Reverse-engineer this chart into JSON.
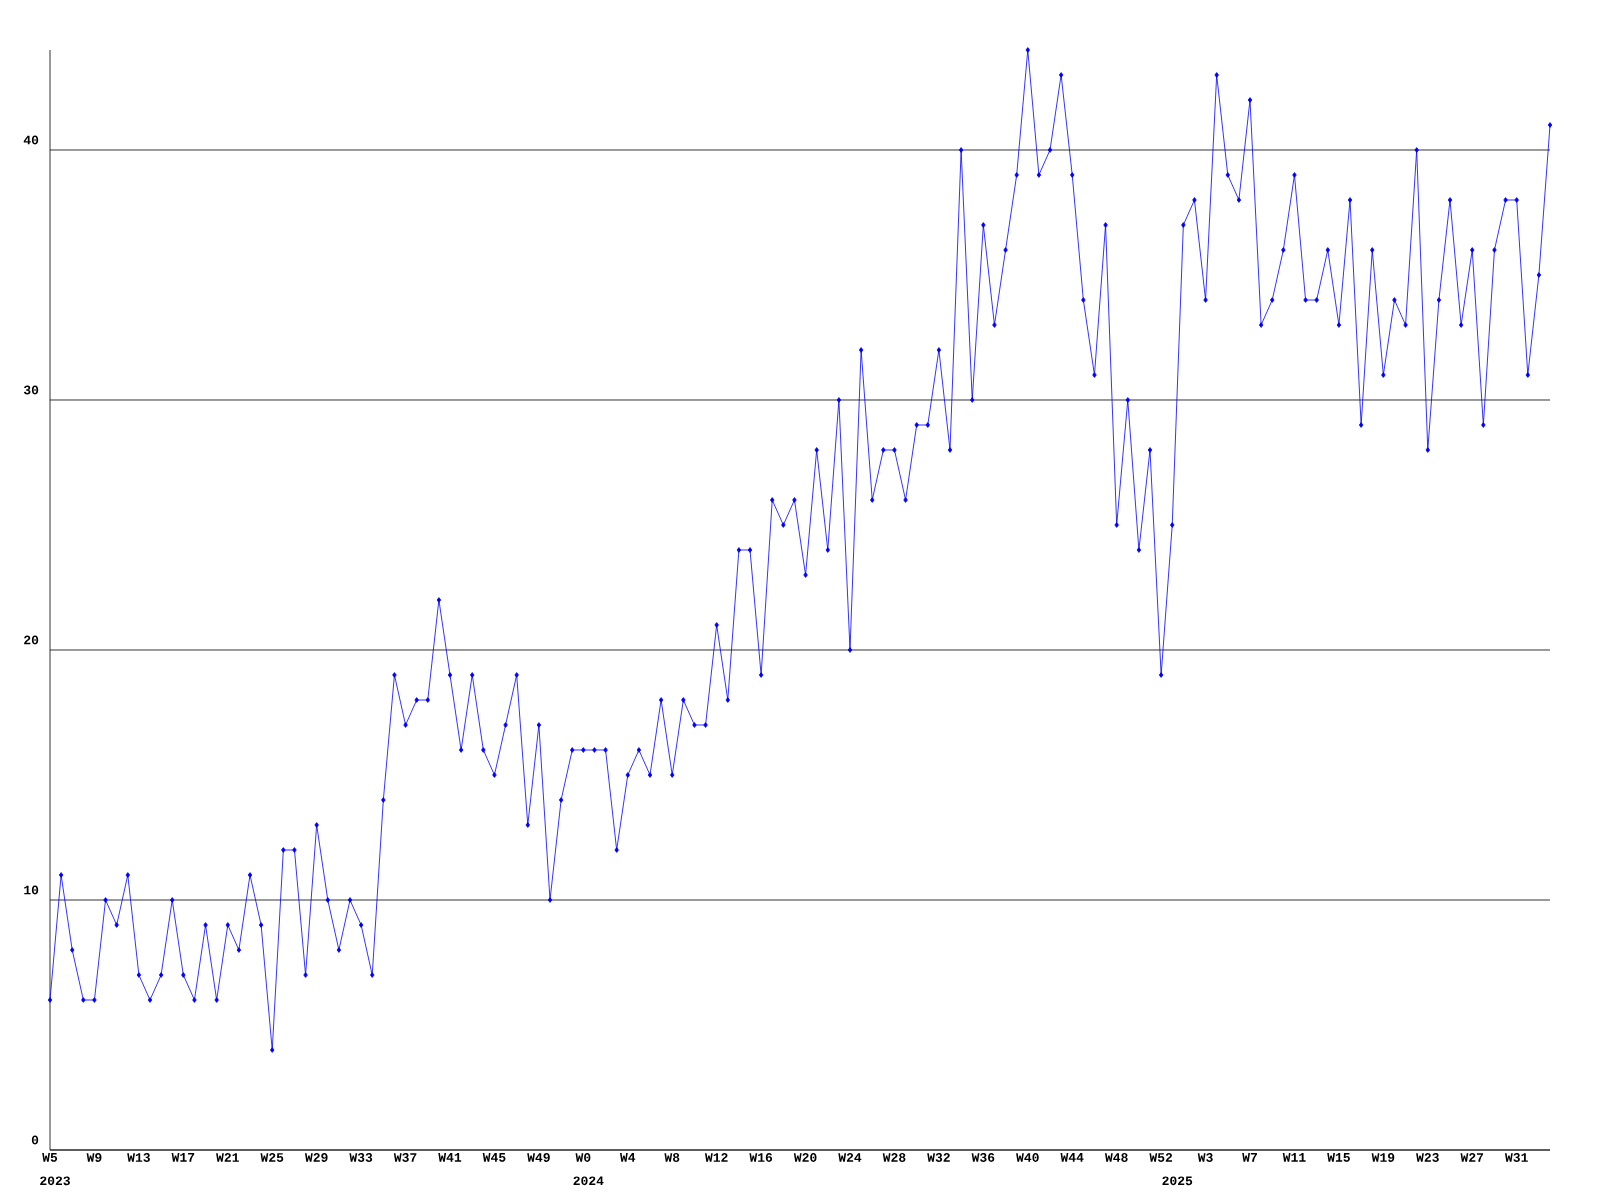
{
  "chart_data": {
    "type": "line",
    "categories": [
      "W5",
      null,
      null,
      null,
      "W9",
      null,
      null,
      null,
      "W13",
      null,
      null,
      null,
      "W17",
      null,
      null,
      null,
      "W21",
      null,
      null,
      null,
      "W25",
      null,
      null,
      null,
      "W29",
      null,
      null,
      null,
      "W33",
      null,
      null,
      null,
      "W37",
      null,
      null,
      null,
      "W41",
      null,
      null,
      null,
      "W45",
      null,
      null,
      null,
      "W49",
      null,
      null,
      null,
      "W0",
      null,
      null,
      null,
      "W4",
      null,
      null,
      null,
      "W8",
      null,
      null,
      null,
      "W12",
      null,
      null,
      null,
      "W16",
      null,
      null,
      null,
      "W20",
      null,
      null,
      null,
      "W24",
      null,
      null,
      null,
      "W28",
      null,
      null,
      null,
      "W32",
      null,
      null,
      null,
      "W36",
      null,
      null,
      null,
      "W40",
      null,
      null,
      null,
      "W44",
      null,
      null,
      null,
      "W48",
      null,
      null,
      null,
      "W52",
      null,
      null,
      null,
      "W3",
      null,
      null,
      null,
      "W7",
      null,
      null,
      null,
      "W11",
      null,
      null,
      null,
      "W15",
      null,
      null,
      null,
      "W19",
      null,
      null,
      null,
      "W23",
      null,
      null,
      null,
      "W27",
      null,
      null,
      null,
      "W31",
      null,
      null,
      null
    ],
    "values": [
      6,
      11,
      8,
      6,
      6,
      10,
      9,
      11,
      7,
      6,
      7,
      10,
      7,
      6,
      9,
      6,
      9,
      8,
      11,
      9,
      4,
      12,
      12,
      7,
      13,
      10,
      8,
      10,
      9,
      7,
      14,
      19,
      17,
      18,
      18,
      22,
      19,
      16,
      19,
      16,
      15,
      17,
      19,
      13,
      17,
      10,
      14,
      16,
      16,
      16,
      16,
      12,
      15,
      16,
      15,
      18,
      15,
      18,
      17,
      17,
      21,
      18,
      24,
      24,
      19,
      26,
      25,
      26,
      23,
      28,
      24,
      30,
      20,
      32,
      26,
      28,
      28,
      26,
      29,
      29,
      32,
      28,
      40,
      30,
      37,
      33,
      36,
      39,
      44,
      39,
      40,
      43,
      39,
      34,
      31,
      37,
      25,
      30,
      24,
      28,
      19,
      25,
      37,
      38,
      34,
      43,
      39,
      38,
      42,
      33,
      34,
      36,
      39,
      34,
      34,
      36,
      33,
      38,
      29,
      36,
      31,
      34,
      33,
      40,
      28,
      34,
      38,
      33,
      36,
      29,
      36,
      38,
      38,
      31,
      35,
      41
    ],
    "color": "#0000ff",
    "ylim": [
      0,
      44
    ],
    "yticks": [
      0,
      10,
      20,
      30,
      40
    ],
    "grid": "y",
    "marker": "diamond",
    "annotations": [
      "2023",
      "2024",
      "2025"
    ]
  }
}
